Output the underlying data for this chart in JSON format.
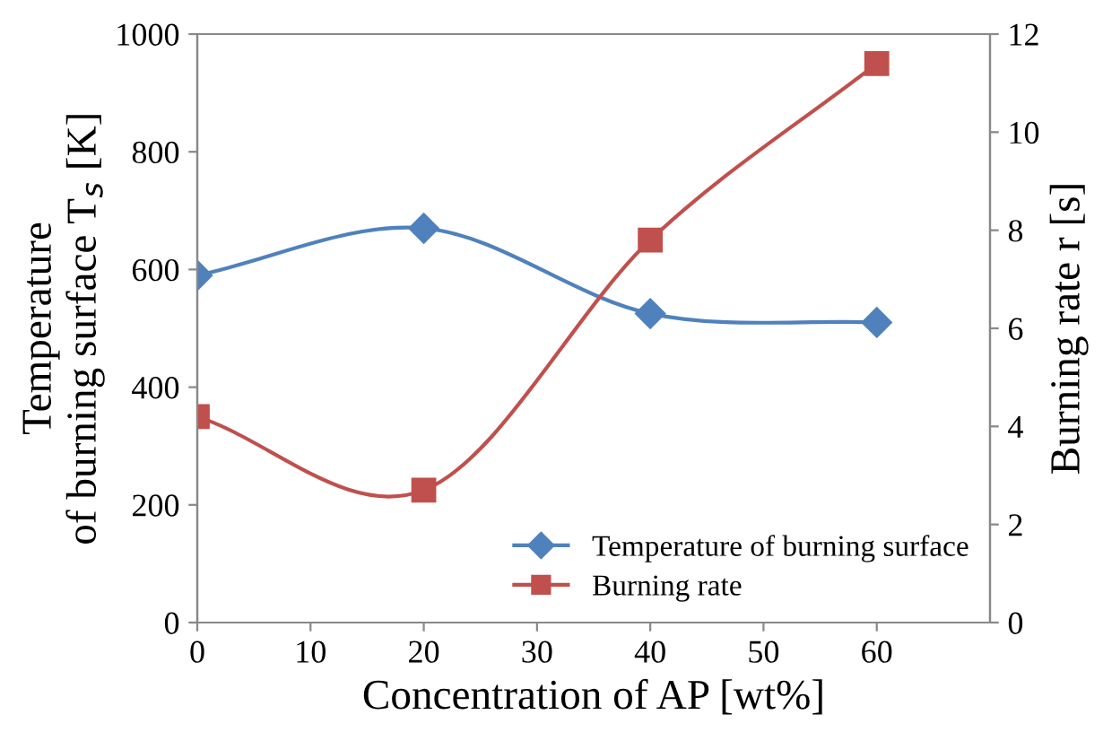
{
  "chart_data": {
    "type": "line",
    "xlabel": "Concentration of AP [wt%]",
    "ylabel": "Temperature\nof burning surface T$_{s}$ [K]",
    "y2label": "Burning rate r [s]",
    "x": [
      0,
      20,
      40,
      60
    ],
    "series": [
      {
        "name": "Temperature of burning surface",
        "color": "#4f81bd",
        "values": [
          590,
          670,
          525,
          510
        ],
        "marker": "diamond"
      },
      {
        "name": "Burning rate",
        "color": "#c0504d",
        "values": [
          4.2,
          2.7,
          7.8,
          11.4
        ],
        "marker": "square",
        "axis": "y2"
      }
    ],
    "xlim": [
      0,
      70
    ],
    "xticks": [
      0,
      10,
      20,
      30,
      40,
      50,
      60
    ],
    "ylim": [
      0,
      1000
    ],
    "yticks": [
      0,
      200,
      400,
      600,
      800,
      1000
    ],
    "y2lim": [
      0,
      12
    ],
    "y2ticks": [
      0,
      2,
      4,
      6,
      8,
      10,
      12
    ],
    "grid": false,
    "legend": "bottom right",
    "line_style": "solid"
  }
}
